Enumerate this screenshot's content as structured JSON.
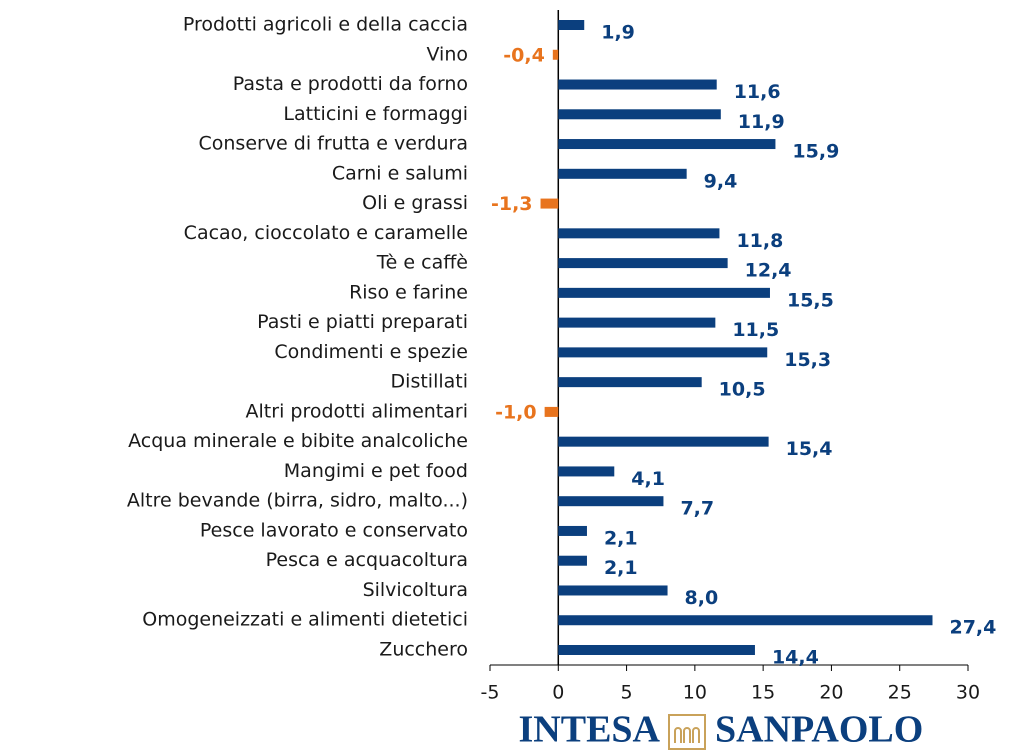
{
  "chart_data": {
    "type": "hbar",
    "categories": [
      "Prodotti agricoli e della caccia",
      "Vino",
      "Pasta e prodotti da forno",
      "Latticini e formaggi",
      "Conserve di frutta e verdura",
      "Carni e salumi",
      "Oli e grassi",
      "Cacao, cioccolato e caramelle",
      "Tè e caffè",
      "Riso e farine",
      "Pasti e piatti preparati",
      "Condimenti e spezie",
      "Distillati",
      "Altri prodotti alimentari",
      "Acqua minerale e bibite analcoliche",
      "Mangimi e pet food",
      "Altre bevande (birra, sidro, malto...)",
      "Pesce lavorato e conservato",
      "Pesca e acquacoltura",
      "Silvicoltura",
      "Omogeneizzati e alimenti dietetici",
      "Zucchero"
    ],
    "values": [
      1.9,
      -0.4,
      11.6,
      11.9,
      15.9,
      9.4,
      -1.3,
      11.8,
      12.4,
      15.5,
      11.5,
      15.3,
      10.5,
      -1.0,
      15.4,
      4.1,
      7.7,
      2.1,
      2.1,
      8.0,
      27.4,
      14.4
    ],
    "value_labels": [
      "1,9",
      "-0,4",
      "11,6",
      "11,9",
      "15,9",
      "9,4",
      "-1,3",
      "11,8",
      "12,4",
      "15,5",
      "11,5",
      "15,3",
      "10,5",
      "-1,0",
      "15,4",
      "4,1",
      "7,7",
      "2,1",
      "2,1",
      "8,0",
      "27,4",
      "14,4"
    ],
    "color": "#0b3f7e",
    "negative_color": "#e8741e",
    "xlim": [
      -5,
      30
    ],
    "xticks": [
      -5,
      0,
      5,
      10,
      15,
      20,
      25,
      30
    ],
    "logo": {
      "left": "INTESA",
      "right": "SANPAOLO"
    }
  }
}
